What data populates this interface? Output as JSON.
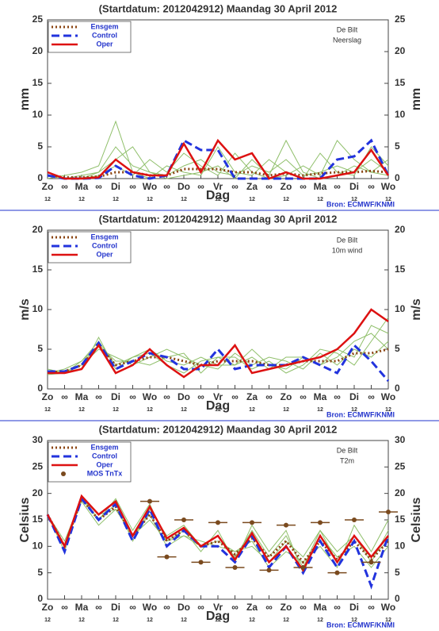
{
  "chart_data": [
    {
      "type": "line",
      "title": "(Startdatum: 2012042912)   Maandag   30 April    2012",
      "ylabel": "mm",
      "xlabel": "Dag",
      "annotations": [
        "De Bilt",
        "Neerslag"
      ],
      "source": "Bron: ECMWF/KNMI",
      "xlim": [
        0,
        20
      ],
      "xticks": [
        {
          "value": 0,
          "label": "Zo"
        },
        {
          "value": 1,
          "label": "∞"
        },
        {
          "value": 2,
          "label": "Ma"
        },
        {
          "value": 3,
          "label": "∞"
        },
        {
          "value": 4,
          "label": "Di"
        },
        {
          "value": 5,
          "label": "∞"
        },
        {
          "value": 6,
          "label": "Wo"
        },
        {
          "value": 7,
          "label": "∞"
        },
        {
          "value": 8,
          "label": "Do"
        },
        {
          "value": 9,
          "label": "∞"
        },
        {
          "value": 10,
          "label": "Vr"
        },
        {
          "value": 11,
          "label": "∞"
        },
        {
          "value": 12,
          "label": "Za"
        },
        {
          "value": 13,
          "label": "∞"
        },
        {
          "value": 14,
          "label": "Zo"
        },
        {
          "value": 15,
          "label": "∞"
        },
        {
          "value": 16,
          "label": "Ma"
        },
        {
          "value": 17,
          "label": "∞"
        },
        {
          "value": 18,
          "label": "Di"
        },
        {
          "value": 19,
          "label": "∞"
        },
        {
          "value": 20,
          "label": "Wo"
        }
      ],
      "hour_labels": [
        {
          "value": 0,
          "label": "12"
        },
        {
          "value": 2,
          "label": "12"
        },
        {
          "value": 4,
          "label": "12"
        },
        {
          "value": 6,
          "label": "12"
        },
        {
          "value": 8,
          "label": "12"
        },
        {
          "value": 10,
          "label": "12"
        },
        {
          "value": 12,
          "label": "12"
        },
        {
          "value": 14,
          "label": "12"
        },
        {
          "value": 16,
          "label": "12"
        },
        {
          "value": 18,
          "label": "12"
        },
        {
          "value": 20,
          "label": "12"
        }
      ],
      "ylim": [
        0,
        25
      ],
      "yticks": [
        0,
        5,
        10,
        15,
        20,
        25
      ],
      "x": [
        0,
        1,
        2,
        3,
        4,
        5,
        6,
        7,
        8,
        9,
        10,
        11,
        12,
        13,
        14,
        15,
        16,
        17,
        18,
        19,
        20
      ],
      "members_color": "#8fbf6a",
      "members": [
        [
          0.5,
          0,
          0.5,
          1,
          5,
          2,
          1,
          0.5,
          2,
          3,
          1,
          0.5,
          2,
          1,
          3,
          0.5,
          1,
          2,
          1,
          3,
          1
        ],
        [
          1,
          0,
          0,
          0.5,
          2,
          0.5,
          3,
          1,
          4,
          2,
          0.5,
          4,
          1,
          0,
          0.5,
          2,
          0.5,
          6,
          3,
          1,
          0.5
        ],
        [
          0,
          0.5,
          1,
          2,
          9,
          1,
          0,
          2,
          1,
          0.5,
          5,
          1,
          0.5,
          3,
          1,
          0,
          4,
          1,
          0.5,
          5,
          2
        ],
        [
          0.5,
          0,
          0,
          1,
          3,
          5,
          1,
          0,
          0.5,
          1,
          2,
          0,
          3,
          0.5,
          6,
          1,
          0,
          0.5,
          2,
          1,
          3
        ]
      ],
      "series": [
        {
          "name": "Ensgem",
          "color": "#8b4513",
          "style": "dotted",
          "values": [
            0.5,
            0.2,
            0.2,
            0.3,
            1,
            1,
            0.5,
            0.5,
            1.5,
            1.5,
            1.5,
            1,
            1,
            0.5,
            0.8,
            0.5,
            0.8,
            1,
            1,
            1.2,
            1
          ]
        },
        {
          "name": "Control",
          "color": "#2233dd",
          "style": "dashed",
          "values": [
            0.5,
            0,
            0,
            0.1,
            2,
            0.5,
            0,
            0.5,
            6,
            4.5,
            4.5,
            0,
            0,
            0,
            0,
            0,
            0,
            3,
            3.5,
            6,
            0.5
          ]
        },
        {
          "name": "Oper",
          "color": "#dd1111",
          "style": "solid",
          "values": [
            1,
            0,
            0,
            0.2,
            3,
            1,
            0.5,
            0.5,
            5.5,
            1,
            6,
            3,
            4,
            0,
            1,
            0,
            0,
            0.5,
            1,
            4.5,
            0.5
          ]
        }
      ]
    },
    {
      "type": "line",
      "title": "(Startdatum: 2012042912)   Maandag   30 April    2012",
      "ylabel": "m/s",
      "xlabel": "Dag",
      "annotations": [
        "De Bilt",
        "10m wind"
      ],
      "source": "Bron: ECMWF/KNMI",
      "xlim": [
        0,
        20
      ],
      "xticks": [
        {
          "value": 0,
          "label": "Zo"
        },
        {
          "value": 1,
          "label": "∞"
        },
        {
          "value": 2,
          "label": "Ma"
        },
        {
          "value": 3,
          "label": "∞"
        },
        {
          "value": 4,
          "label": "Di"
        },
        {
          "value": 5,
          "label": "∞"
        },
        {
          "value": 6,
          "label": "Wo"
        },
        {
          "value": 7,
          "label": "∞"
        },
        {
          "value": 8,
          "label": "Do"
        },
        {
          "value": 9,
          "label": "∞"
        },
        {
          "value": 10,
          "label": "Vr"
        },
        {
          "value": 11,
          "label": "∞"
        },
        {
          "value": 12,
          "label": "Za"
        },
        {
          "value": 13,
          "label": "∞"
        },
        {
          "value": 14,
          "label": "Zo"
        },
        {
          "value": 15,
          "label": "∞"
        },
        {
          "value": 16,
          "label": "Ma"
        },
        {
          "value": 17,
          "label": "∞"
        },
        {
          "value": 18,
          "label": "Di"
        },
        {
          "value": 19,
          "label": "∞"
        },
        {
          "value": 20,
          "label": "Wo"
        }
      ],
      "hour_labels": [
        {
          "value": 0,
          "label": "12"
        },
        {
          "value": 2,
          "label": "12"
        },
        {
          "value": 4,
          "label": "12"
        },
        {
          "value": 6,
          "label": "12"
        },
        {
          "value": 8,
          "label": "12"
        },
        {
          "value": 10,
          "label": "12"
        },
        {
          "value": 12,
          "label": "12"
        },
        {
          "value": 14,
          "label": "12"
        },
        {
          "value": 16,
          "label": "12"
        },
        {
          "value": 18,
          "label": "12"
        },
        {
          "value": 20,
          "label": "12"
        }
      ],
      "ylim": [
        0,
        20
      ],
      "yticks": [
        0,
        5,
        10,
        15,
        20
      ],
      "x": [
        0,
        1,
        2,
        3,
        4,
        5,
        6,
        7,
        8,
        9,
        10,
        11,
        12,
        13,
        14,
        15,
        16,
        17,
        18,
        19,
        20
      ],
      "members_color": "#8fbf6a",
      "members": [
        [
          2,
          2.5,
          3.5,
          6,
          3,
          4,
          4.5,
          3,
          2,
          3.5,
          4,
          3,
          5,
          3,
          2.5,
          4,
          3,
          4,
          6,
          7,
          5
        ],
        [
          2.5,
          2,
          3,
          5,
          4,
          3,
          4,
          5,
          4,
          3,
          2.5,
          4.5,
          3,
          4,
          3.5,
          2.5,
          4.5,
          3,
          5,
          4,
          6
        ],
        [
          2,
          2.2,
          2.5,
          6.5,
          2.5,
          4,
          5,
          3.5,
          3,
          4,
          3,
          3,
          4,
          2.5,
          4,
          4,
          3,
          5,
          4,
          8,
          7
        ],
        [
          1.8,
          2,
          3.5,
          5.5,
          3.5,
          3.5,
          3,
          4,
          4.5,
          2,
          4,
          4,
          2.5,
          3.5,
          2,
          3,
          5,
          4.5,
          3,
          6,
          9
        ]
      ],
      "series": [
        {
          "name": "Ensgem",
          "color": "#8b4513",
          "style": "dotted",
          "values": [
            2.1,
            2.2,
            3,
            5.5,
            3,
            3.5,
            4,
            4,
            3.5,
            3,
            3.5,
            3.5,
            3.5,
            3,
            3,
            3.5,
            3.5,
            3.5,
            4.5,
            4.5,
            5
          ]
        },
        {
          "name": "Control",
          "color": "#2233dd",
          "style": "dashed",
          "values": [
            2.2,
            2.2,
            3,
            5.8,
            2.5,
            3.5,
            4.5,
            4,
            2.5,
            2.5,
            5,
            2.5,
            3,
            3,
            3,
            4,
            3,
            2,
            5.5,
            3.5,
            1
          ]
        },
        {
          "name": "Oper",
          "color": "#dd1111",
          "style": "solid",
          "values": [
            2,
            2,
            2.5,
            5.5,
            2,
            3,
            5,
            3,
            1.5,
            3,
            3,
            5.5,
            2,
            2.5,
            3,
            3.5,
            4,
            5,
            7,
            10,
            8.5
          ]
        }
      ]
    },
    {
      "type": "line",
      "title": "(Startdatum: 2012042912)   Maandag   30 April    2012",
      "ylabel": "Celsius",
      "xlabel": "Dag",
      "annotations": [
        "De Bilt",
        "T2m"
      ],
      "source": "Bron: ECMWF/KNMI",
      "xlim": [
        0,
        20
      ],
      "xticks": [
        {
          "value": 0,
          "label": "Zo"
        },
        {
          "value": 1,
          "label": "∞"
        },
        {
          "value": 2,
          "label": "Ma"
        },
        {
          "value": 3,
          "label": "∞"
        },
        {
          "value": 4,
          "label": "Di"
        },
        {
          "value": 5,
          "label": "∞"
        },
        {
          "value": 6,
          "label": "Wo"
        },
        {
          "value": 7,
          "label": "∞"
        },
        {
          "value": 8,
          "label": "Do"
        },
        {
          "value": 9,
          "label": "∞"
        },
        {
          "value": 10,
          "label": "Vr"
        },
        {
          "value": 11,
          "label": "∞"
        },
        {
          "value": 12,
          "label": "Za"
        },
        {
          "value": 13,
          "label": "∞"
        },
        {
          "value": 14,
          "label": "Zo"
        },
        {
          "value": 15,
          "label": "∞"
        },
        {
          "value": 16,
          "label": "Ma"
        },
        {
          "value": 17,
          "label": "∞"
        },
        {
          "value": 18,
          "label": "Di"
        },
        {
          "value": 19,
          "label": "∞"
        },
        {
          "value": 20,
          "label": "Wo"
        }
      ],
      "hour_labels": [
        {
          "value": 0,
          "label": "12"
        },
        {
          "value": 2,
          "label": "12"
        },
        {
          "value": 4,
          "label": "12"
        },
        {
          "value": 6,
          "label": "12"
        },
        {
          "value": 8,
          "label": "12"
        },
        {
          "value": 10,
          "label": "12"
        },
        {
          "value": 12,
          "label": "12"
        },
        {
          "value": 14,
          "label": "12"
        },
        {
          "value": 16,
          "label": "12"
        },
        {
          "value": 18,
          "label": "12"
        },
        {
          "value": 20,
          "label": "12"
        }
      ],
      "ylim": [
        0,
        30
      ],
      "yticks": [
        0,
        5,
        10,
        15,
        20,
        25,
        30
      ],
      "x": [
        0,
        1,
        2,
        3,
        4,
        5,
        6,
        7,
        8,
        9,
        10,
        11,
        12,
        13,
        14,
        15,
        16,
        17,
        18,
        19,
        20
      ],
      "members_color": "#8fbf6a",
      "members": [
        [
          16,
          11,
          19,
          15,
          18,
          11,
          17,
          12,
          14,
          10,
          12,
          8,
          13,
          8,
          12,
          6,
          13,
          9,
          12,
          7,
          13
        ],
        [
          16,
          10,
          19,
          16,
          17,
          12,
          16,
          10,
          12,
          11,
          10,
          9,
          11,
          6,
          9,
          7,
          10,
          6,
          14,
          9,
          15
        ],
        [
          16,
          9,
          19.5,
          15,
          19,
          13,
          18,
          11,
          13,
          9,
          13,
          7,
          14,
          9,
          13,
          5,
          12,
          8,
          10,
          6,
          10
        ],
        [
          16,
          10,
          18.5,
          14,
          17,
          12,
          15,
          11,
          12,
          10,
          11,
          9,
          10,
          7,
          11,
          8,
          13,
          7,
          12,
          8,
          11
        ]
      ],
      "series": [
        {
          "name": "Ensgem",
          "color": "#8b4513",
          "style": "dotted",
          "values": [
            16,
            10,
            19,
            15,
            17.5,
            12,
            16,
            11,
            13,
            10,
            11,
            8.5,
            11.5,
            8,
            11,
            7,
            11,
            7.5,
            11,
            7.5,
            11
          ]
        },
        {
          "name": "Control",
          "color": "#2233dd",
          "style": "dashed",
          "values": [
            16,
            9,
            19,
            15,
            18,
            11,
            17,
            10,
            13,
            10,
            10,
            7,
            12,
            6,
            10,
            5,
            11,
            6,
            11,
            2.5,
            12
          ]
        },
        {
          "name": "Oper",
          "color": "#dd1111",
          "style": "solid",
          "values": [
            16,
            10,
            19.5,
            16,
            18.5,
            12,
            17.5,
            11.5,
            13.5,
            10,
            12,
            7.5,
            12.5,
            7,
            10,
            5.5,
            12,
            7,
            12,
            8,
            12
          ]
        }
      ],
      "mos": {
        "name": "MOS TnTx",
        "color": "#7a4a1e",
        "x": [
          6,
          7,
          8,
          9,
          10,
          11,
          12,
          13,
          14,
          15,
          16,
          17,
          18,
          19,
          20
        ],
        "values": [
          18.5,
          8,
          15,
          7,
          14.5,
          6,
          14.5,
          5.5,
          14,
          6,
          14.5,
          5,
          15,
          7,
          16.5
        ]
      }
    }
  ]
}
